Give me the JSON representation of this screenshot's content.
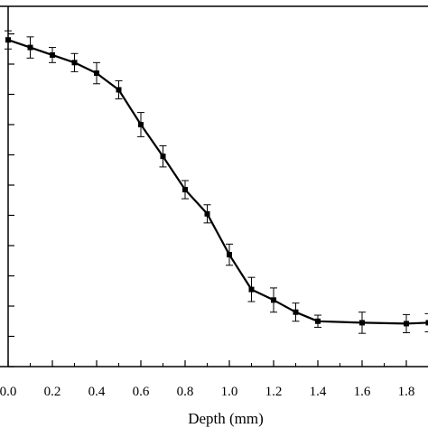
{
  "chart_data": {
    "type": "line",
    "xlabel": "Depth (mm)",
    "ylabel": "",
    "title": "",
    "xlim": [
      0.0,
      1.9
    ],
    "ylim": [
      0,
      12
    ],
    "x_ticks": [
      0.0,
      0.2,
      0.4,
      0.6,
      0.8,
      1.0,
      1.2,
      1.4,
      1.6,
      1.8
    ],
    "x_tick_labels": [
      "0.0",
      "0.2",
      "0.4",
      "0.6",
      "0.8",
      "1.0",
      "1.2",
      "1.4",
      "1.6",
      "1.8"
    ],
    "y_ticks": [
      0,
      1,
      2,
      3,
      4,
      5,
      6,
      7,
      8,
      9,
      10,
      11,
      12
    ],
    "grid": false,
    "legend": "none",
    "marker": "square",
    "color": "#000000",
    "series": [
      {
        "x": [
          0.0,
          0.1,
          0.2,
          0.3,
          0.4,
          0.5,
          0.6,
          0.7,
          0.8,
          0.9,
          1.0,
          1.1,
          1.2,
          1.3,
          1.4,
          1.6,
          1.8,
          1.9
        ],
        "y": [
          10.8,
          10.55,
          10.3,
          10.05,
          9.7,
          9.15,
          8.0,
          6.95,
          5.85,
          5.05,
          3.7,
          2.55,
          2.2,
          1.8,
          1.5,
          1.45,
          1.42,
          1.45
        ],
        "err": [
          0.3,
          0.35,
          0.25,
          0.3,
          0.35,
          0.3,
          0.4,
          0.35,
          0.3,
          0.3,
          0.35,
          0.4,
          0.4,
          0.3,
          0.2,
          0.35,
          0.3,
          0.3
        ]
      }
    ]
  }
}
